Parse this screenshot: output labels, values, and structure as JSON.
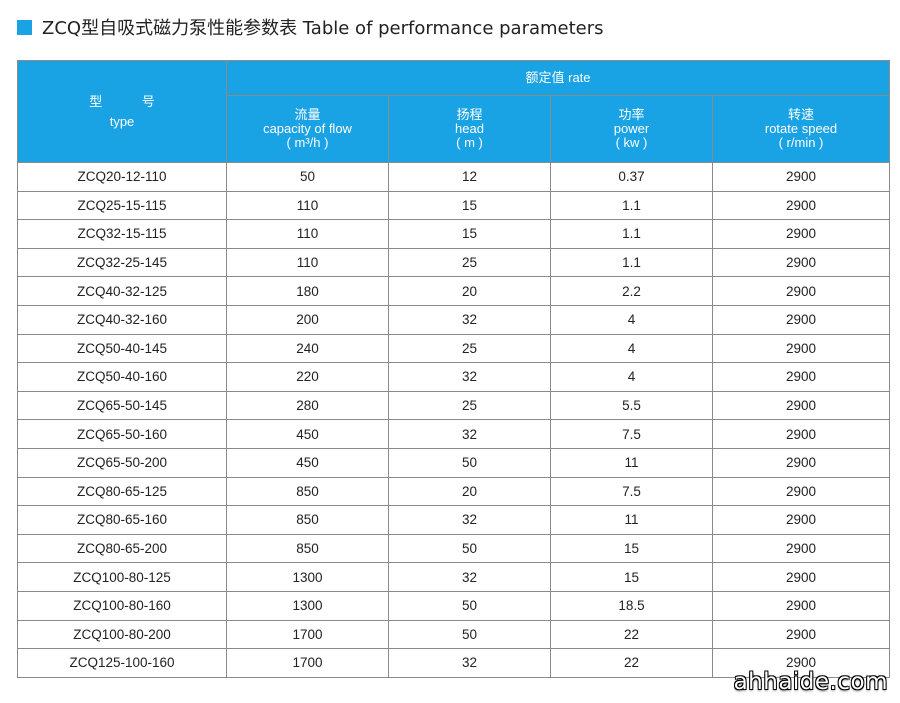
{
  "title": "ZCQ型自吸式磁力泵性能参数表  Table of performance parameters",
  "header": {
    "type_cn": "型 号",
    "type_en": "type",
    "rated": "额定值  rate",
    "columns": [
      {
        "cn": "流量",
        "en": "capacity of flow",
        "unit": "( m³/h )"
      },
      {
        "cn": "扬程",
        "en": "head",
        "unit": "( m )"
      },
      {
        "cn": "功率",
        "en": "power",
        "unit": "( kw )"
      },
      {
        "cn": "转速",
        "en": "rotate speed",
        "unit": "( r/min )"
      }
    ]
  },
  "rows": [
    [
      "ZCQ20-12-110",
      "50",
      "12",
      "0.37",
      "2900"
    ],
    [
      "ZCQ25-15-115",
      "110",
      "15",
      "1.1",
      "2900"
    ],
    [
      "ZCQ32-15-115",
      "110",
      "15",
      "1.1",
      "2900"
    ],
    [
      "ZCQ32-25-145",
      "110",
      "25",
      "1.1",
      "2900"
    ],
    [
      "ZCQ40-32-125",
      "180",
      "20",
      "2.2",
      "2900"
    ],
    [
      "ZCQ40-32-160",
      "200",
      "32",
      "4",
      "2900"
    ],
    [
      "ZCQ50-40-145",
      "240",
      "25",
      "4",
      "2900"
    ],
    [
      "ZCQ50-40-160",
      "220",
      "32",
      "4",
      "2900"
    ],
    [
      "ZCQ65-50-145",
      "280",
      "25",
      "5.5",
      "2900"
    ],
    [
      "ZCQ65-50-160",
      "450",
      "32",
      "7.5",
      "2900"
    ],
    [
      "ZCQ65-50-200",
      "450",
      "50",
      "11",
      "2900"
    ],
    [
      "ZCQ80-65-125",
      "850",
      "20",
      "7.5",
      "2900"
    ],
    [
      "ZCQ80-65-160",
      "850",
      "32",
      "11",
      "2900"
    ],
    [
      "ZCQ80-65-200",
      "850",
      "50",
      "15",
      "2900"
    ],
    [
      "ZCQ100-80-125",
      "1300",
      "32",
      "15",
      "2900"
    ],
    [
      "ZCQ100-80-160",
      "1300",
      "50",
      "18.5",
      "2900"
    ],
    [
      "ZCQ100-80-200",
      "1700",
      "50",
      "22",
      "2900"
    ],
    [
      "ZCQ125-100-160",
      "1700",
      "32",
      "22",
      "2900"
    ]
  ],
  "watermark": "ahhaide.com",
  "colors": {
    "header_bg": "#1aa3e4",
    "accent": "#1aa3e4",
    "border": "#8a8a8a"
  }
}
